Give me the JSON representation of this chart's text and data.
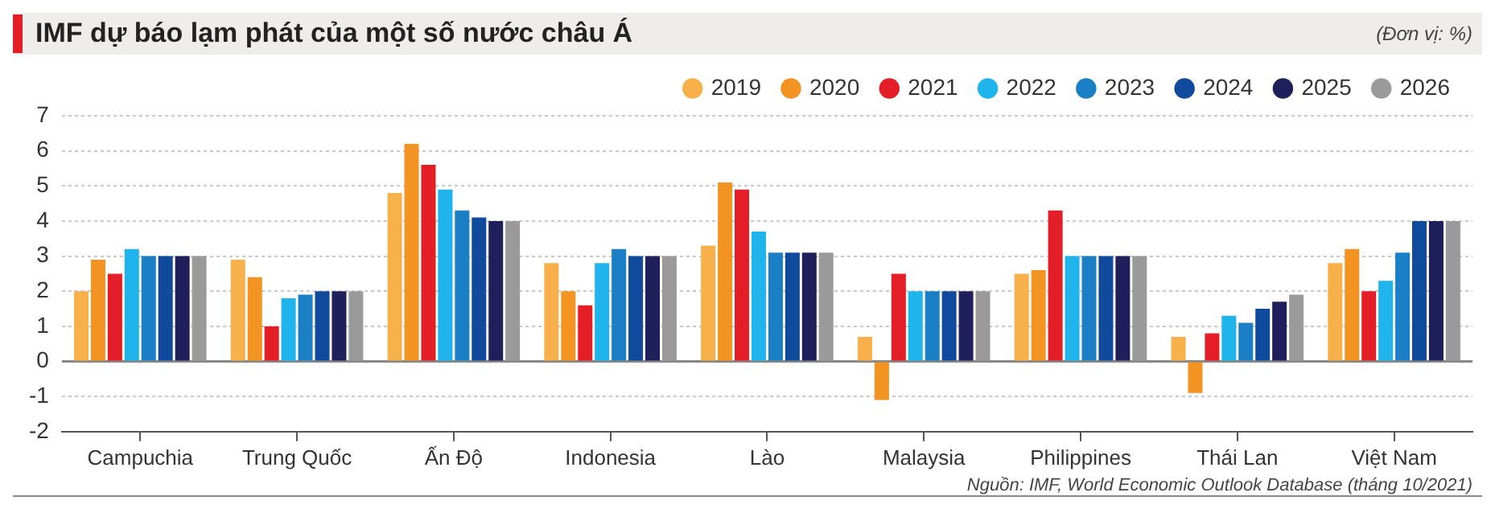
{
  "chart_data": {
    "type": "bar",
    "title": "IMF dự báo lạm phát của một số nước châu Á",
    "annotations": [
      "(Đơn vị: %)",
      "Nguồn: IMF, World Economic Outlook Database (tháng 10/2021)"
    ],
    "categories": [
      "Campuchia",
      "Trung Quốc",
      "Ấn Độ",
      "Indonesia",
      "Lào",
      "Malaysia",
      "Philippines",
      "Thái Lan",
      "Việt Nam"
    ],
    "series": [
      {
        "name": "2019",
        "color": "#f8b04a",
        "values": [
          2.0,
          2.9,
          4.8,
          2.8,
          3.3,
          0.7,
          2.5,
          0.7,
          2.8
        ]
      },
      {
        "name": "2020",
        "color": "#f39322",
        "values": [
          2.9,
          2.4,
          6.2,
          2.0,
          5.1,
          -1.1,
          2.6,
          -0.9,
          3.2
        ]
      },
      {
        "name": "2021",
        "color": "#e31e26",
        "values": [
          2.5,
          1.0,
          5.6,
          1.6,
          4.9,
          2.5,
          4.3,
          0.8,
          2.0
        ]
      },
      {
        "name": "2022",
        "color": "#1fb4ec",
        "values": [
          3.2,
          1.8,
          4.9,
          2.8,
          3.7,
          2.0,
          3.0,
          1.3,
          2.3
        ]
      },
      {
        "name": "2023",
        "color": "#1a7fc4",
        "values": [
          3.0,
          1.9,
          4.3,
          3.2,
          3.1,
          2.0,
          3.0,
          1.1,
          3.1
        ]
      },
      {
        "name": "2024",
        "color": "#104a9c",
        "values": [
          3.0,
          2.0,
          4.1,
          3.0,
          3.1,
          2.0,
          3.0,
          1.5,
          4.0
        ]
      },
      {
        "name": "2025",
        "color": "#1f1f5c",
        "values": [
          3.0,
          2.0,
          4.0,
          3.0,
          3.1,
          2.0,
          3.0,
          1.7,
          4.0
        ]
      },
      {
        "name": "2026",
        "color": "#9a9a9a",
        "values": [
          3.0,
          2.0,
          4.0,
          3.0,
          3.1,
          2.0,
          3.0,
          1.9,
          4.0
        ]
      }
    ],
    "ylim": [
      -2,
      7
    ],
    "yticks": [
      -2,
      -1,
      0,
      1,
      2,
      3,
      4,
      5,
      6,
      7
    ],
    "ref_lines": [
      {
        "axis": "y",
        "value": 0,
        "color": "#888888"
      }
    ],
    "grid": "y",
    "legend": "top right"
  }
}
